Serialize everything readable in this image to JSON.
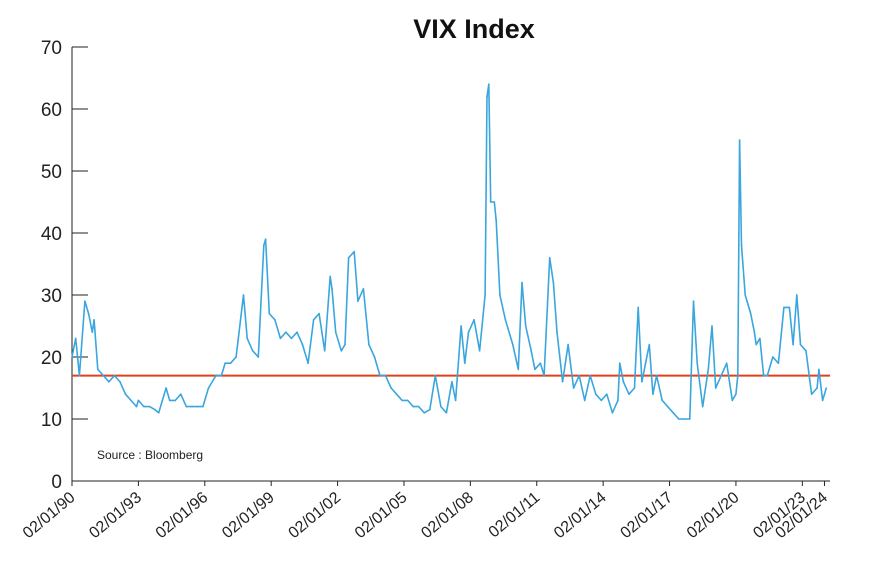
{
  "chart_data": {
    "type": "line",
    "title": "VIX Index",
    "source_note": "Source : Bloomberg",
    "ylim": [
      0,
      70
    ],
    "y_ticks": [
      "0",
      "10",
      "20",
      "30",
      "40",
      "50",
      "60",
      "70"
    ],
    "x_ticks": [
      "02/01/90",
      "02/01/93",
      "02/01/96",
      "02/01/99",
      "02/01/02",
      "02/01/05",
      "02/01/08",
      "02/01/11",
      "02/01/14",
      "02/01/17",
      "02/01/20",
      "02/01/23",
      "02/01/24"
    ],
    "reference_line": {
      "value": 17,
      "color": "#e2401c"
    },
    "series": [
      {
        "color": "#3aa6dd",
        "points": [
          [
            "1990-01",
            20
          ],
          [
            "1990-03",
            23
          ],
          [
            "1990-05",
            17
          ],
          [
            "1990-08",
            29
          ],
          [
            "1990-10",
            27
          ],
          [
            "1990-12",
            24
          ],
          [
            "1991-01",
            26
          ],
          [
            "1991-03",
            18
          ],
          [
            "1991-06",
            17
          ],
          [
            "1991-09",
            16
          ],
          [
            "1991-12",
            17
          ],
          [
            "1992-03",
            16
          ],
          [
            "1992-06",
            14
          ],
          [
            "1992-09",
            13
          ],
          [
            "1992-12",
            12
          ],
          [
            "1993-01",
            13
          ],
          [
            "1993-04",
            12
          ],
          [
            "1993-07",
            12
          ],
          [
            "1993-10",
            11.5
          ],
          [
            "1993-12",
            11
          ],
          [
            "1994-02",
            13
          ],
          [
            "1994-04",
            15
          ],
          [
            "1994-06",
            13
          ],
          [
            "1994-09",
            13
          ],
          [
            "1994-12",
            14
          ],
          [
            "1995-03",
            12
          ],
          [
            "1995-06",
            12
          ],
          [
            "1995-09",
            12
          ],
          [
            "1995-12",
            12
          ],
          [
            "1996-03",
            15
          ],
          [
            "1996-07",
            17
          ],
          [
            "1996-10",
            17
          ],
          [
            "1996-12",
            19
          ],
          [
            "1997-03",
            19
          ],
          [
            "1997-06",
            20
          ],
          [
            "1997-10",
            30
          ],
          [
            "1997-12",
            23
          ],
          [
            "1998-03",
            21
          ],
          [
            "1998-06",
            20
          ],
          [
            "1998-09",
            38
          ],
          [
            "1998-10",
            39
          ],
          [
            "1998-12",
            27
          ],
          [
            "1999-03",
            26
          ],
          [
            "1999-06",
            23
          ],
          [
            "1999-09",
            24
          ],
          [
            "1999-12",
            23
          ],
          [
            "2000-03",
            24
          ],
          [
            "2000-06",
            22
          ],
          [
            "2000-09",
            19
          ],
          [
            "2000-12",
            26
          ],
          [
            "2001-03",
            27
          ],
          [
            "2001-06",
            21
          ],
          [
            "2001-09",
            33
          ],
          [
            "2001-10",
            31
          ],
          [
            "2001-12",
            24
          ],
          [
            "2002-03",
            21
          ],
          [
            "2002-05",
            22
          ],
          [
            "2002-07",
            36
          ],
          [
            "2002-10",
            37
          ],
          [
            "2002-12",
            29
          ],
          [
            "2003-03",
            31
          ],
          [
            "2003-06",
            22
          ],
          [
            "2003-09",
            20
          ],
          [
            "2003-12",
            17
          ],
          [
            "2004-03",
            17
          ],
          [
            "2004-06",
            15
          ],
          [
            "2004-09",
            14
          ],
          [
            "2004-12",
            13
          ],
          [
            "2005-03",
            13
          ],
          [
            "2005-06",
            12
          ],
          [
            "2005-09",
            12
          ],
          [
            "2005-12",
            11
          ],
          [
            "2006-03",
            11.5
          ],
          [
            "2006-06",
            17
          ],
          [
            "2006-09",
            12
          ],
          [
            "2006-12",
            11
          ],
          [
            "2007-03",
            16
          ],
          [
            "2007-05",
            13
          ],
          [
            "2007-08",
            25
          ],
          [
            "2007-10",
            19
          ],
          [
            "2007-12",
            24
          ],
          [
            "2008-03",
            26
          ],
          [
            "2008-06",
            21
          ],
          [
            "2008-09",
            30
          ],
          [
            "2008-10",
            62
          ],
          [
            "2008-11",
            64
          ],
          [
            "2008-12",
            45
          ],
          [
            "2009-02",
            45
          ],
          [
            "2009-03",
            42
          ],
          [
            "2009-05",
            30
          ],
          [
            "2009-08",
            26
          ],
          [
            "2009-12",
            22
          ],
          [
            "2010-03",
            18
          ],
          [
            "2010-05",
            32
          ],
          [
            "2010-07",
            25
          ],
          [
            "2010-10",
            21
          ],
          [
            "2010-12",
            18
          ],
          [
            "2011-03",
            19
          ],
          [
            "2011-05",
            17
          ],
          [
            "2011-08",
            36
          ],
          [
            "2011-10",
            32
          ],
          [
            "2011-12",
            24
          ],
          [
            "2012-03",
            16
          ],
          [
            "2012-06",
            22
          ],
          [
            "2012-09",
            15
          ],
          [
            "2012-12",
            17
          ],
          [
            "2013-03",
            13
          ],
          [
            "2013-06",
            17
          ],
          [
            "2013-09",
            14
          ],
          [
            "2013-12",
            13
          ],
          [
            "2014-03",
            14
          ],
          [
            "2014-06",
            11
          ],
          [
            "2014-09",
            13
          ],
          [
            "2014-10",
            19
          ],
          [
            "2014-12",
            16
          ],
          [
            "2015-03",
            14
          ],
          [
            "2015-06",
            15
          ],
          [
            "2015-08",
            28
          ],
          [
            "2015-10",
            16
          ],
          [
            "2015-12",
            19
          ],
          [
            "2016-02",
            22
          ],
          [
            "2016-04",
            14
          ],
          [
            "2016-06",
            17
          ],
          [
            "2016-09",
            13
          ],
          [
            "2016-12",
            12
          ],
          [
            "2017-03",
            11
          ],
          [
            "2017-06",
            10
          ],
          [
            "2017-09",
            10
          ],
          [
            "2017-12",
            10
          ],
          [
            "2018-02",
            29
          ],
          [
            "2018-04",
            19
          ],
          [
            "2018-07",
            12
          ],
          [
            "2018-10",
            18
          ],
          [
            "2018-12",
            25
          ],
          [
            "2019-02",
            15
          ],
          [
            "2019-05",
            17
          ],
          [
            "2019-08",
            19
          ],
          [
            "2019-11",
            13
          ],
          [
            "2020-01",
            14
          ],
          [
            "2020-02",
            17
          ],
          [
            "2020-03",
            55
          ],
          [
            "2020-04",
            38
          ],
          [
            "2020-06",
            30
          ],
          [
            "2020-09",
            27
          ],
          [
            "2020-11",
            24
          ],
          [
            "2020-12",
            22
          ],
          [
            "2021-02",
            23
          ],
          [
            "2021-04",
            17
          ],
          [
            "2021-06",
            17
          ],
          [
            "2021-09",
            20
          ],
          [
            "2021-12",
            19
          ],
          [
            "2022-03",
            28
          ],
          [
            "2022-06",
            28
          ],
          [
            "2022-08",
            22
          ],
          [
            "2022-10",
            30
          ],
          [
            "2022-12",
            22
          ],
          [
            "2023-03",
            21
          ],
          [
            "2023-06",
            14
          ],
          [
            "2023-09",
            15
          ],
          [
            "2023-10",
            18
          ],
          [
            "2023-12",
            13
          ],
          [
            "2024-01",
            14
          ],
          [
            "2024-02",
            15
          ]
        ]
      }
    ]
  }
}
